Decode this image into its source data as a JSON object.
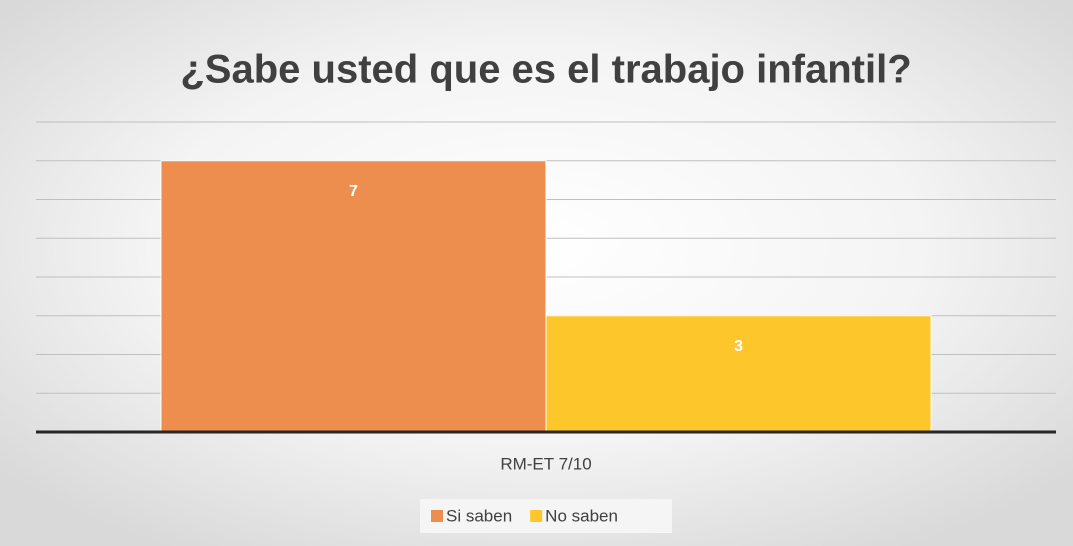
{
  "chart_data": {
    "type": "bar",
    "title": "¿Sabe usted que es el trabajo infantil?",
    "categories": [
      "RM-ET 7/10"
    ],
    "series": [
      {
        "name": "Si saben",
        "color": "#ee8e4e",
        "values": [
          7
        ]
      },
      {
        "name": "No saben",
        "color": "#fdc72c",
        "values": [
          3
        ]
      }
    ],
    "ylim": [
      0,
      8
    ],
    "yticks": [
      0,
      1,
      2,
      3,
      4,
      5,
      6,
      7,
      8
    ],
    "grid": true,
    "legend": "bottom"
  }
}
